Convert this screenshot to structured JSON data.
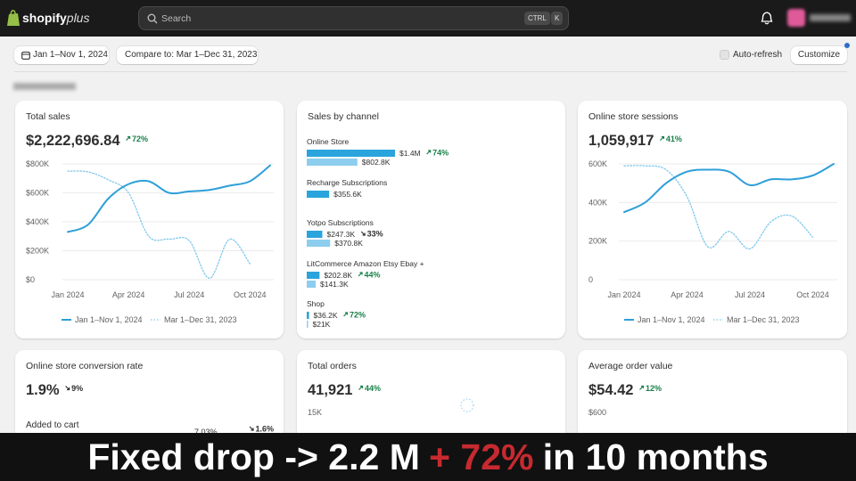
{
  "header": {
    "logo": "shopify",
    "logo_suffix": "plus",
    "search": "Search",
    "shortcut": [
      "CTRL",
      "K"
    ]
  },
  "toolbar": {
    "date_range": "Jan 1–Nov 1, 2024",
    "compare": "Compare to: Mar 1–Dec 31, 2023",
    "auto_refresh": "Auto-refresh",
    "customize": "Customize"
  },
  "total_sales": {
    "title": "Total sales",
    "value": "$2,222,696.84",
    "change": "72%",
    "direction": "up",
    "chart": {
      "type": "line",
      "x": [
        0,
        1,
        2,
        3,
        4,
        5,
        6,
        7,
        8,
        9,
        10
      ],
      "xlim": [
        0,
        10
      ],
      "xticks": [
        {
          "value": 0,
          "label": "Jan 2024"
        },
        {
          "value": 3,
          "label": "Apr 2024"
        },
        {
          "value": 6,
          "label": "Jul 2024"
        },
        {
          "value": 9,
          "label": "Oct 2024"
        }
      ],
      "ylim": [
        0,
        800000
      ],
      "yticks": [
        {
          "value": 0,
          "label": "$0"
        },
        {
          "value": 200000,
          "label": "$200K"
        },
        {
          "value": 400000,
          "label": "$400K"
        },
        {
          "value": 600000,
          "label": "$600K"
        },
        {
          "value": 800000,
          "label": "$800K"
        }
      ],
      "grid": true,
      "series": [
        {
          "name": "Jan 1–Nov 1, 2024",
          "color": "#2e9fd8",
          "line_style": "solid",
          "values": [
            330000,
            380000,
            560000,
            660000,
            680000,
            600000,
            610000,
            620000,
            650000,
            680000,
            790000
          ]
        },
        {
          "name": "Mar 1–Dec 31, 2023",
          "color": "#7fc8ec",
          "line_style": "dotted",
          "values": [
            750000,
            745000,
            690000,
            600000,
            300000,
            280000,
            270000,
            10000,
            280000,
            110000,
            null
          ]
        }
      ]
    }
  },
  "sales_by_channel": {
    "title": "Sales by channel",
    "max": 1400000,
    "channels": [
      {
        "name": "Online Store",
        "current": 1400000,
        "current_label": "$1.4M",
        "previous": 802800,
        "previous_label": "$802.8K",
        "change": "74%",
        "direction": "up"
      },
      {
        "name": "Recharge Subscriptions",
        "current": 355600,
        "current_label": "$355.6K"
      },
      {
        "name": "Yotpo Subscriptions",
        "current": 247300,
        "current_label": "$247.3K",
        "previous": 370800,
        "previous_label": "$370.8K",
        "change": "33%",
        "direction": "down"
      },
      {
        "name": "LitCommerce Amazon Etsy Ebay +",
        "current": 202800,
        "current_label": "$202.8K",
        "previous": 141300,
        "previous_label": "$141.3K",
        "change": "44%",
        "direction": "up"
      },
      {
        "name": "Shop",
        "current": 36200,
        "current_label": "$36.2K",
        "previous": 21000,
        "previous_label": "$21K",
        "change": "72%",
        "direction": "up"
      }
    ]
  },
  "sessions": {
    "title": "Online store sessions",
    "value": "1,059,917",
    "change": "41%",
    "direction": "up",
    "chart": {
      "type": "line",
      "x": [
        0,
        1,
        2,
        3,
        4,
        5,
        6,
        7,
        8,
        9,
        10
      ],
      "xlim": [
        0,
        10
      ],
      "xticks": [
        {
          "value": 0,
          "label": "Jan 2024"
        },
        {
          "value": 3,
          "label": "Apr 2024"
        },
        {
          "value": 6,
          "label": "Jul 2024"
        },
        {
          "value": 9,
          "label": "Oct 2024"
        }
      ],
      "ylim": [
        0,
        600000
      ],
      "yticks": [
        0,
        {
          "value": 200000,
          "label": "200K"
        },
        {
          "value": 400000,
          "label": "400K"
        },
        {
          "value": 600000,
          "label": "600K"
        }
      ],
      "grid": true,
      "series": [
        {
          "name": "Jan 1–Nov 1, 2024",
          "color": "#2e9fd8",
          "line_style": "solid",
          "values": [
            350000,
            400000,
            500000,
            560000,
            570000,
            560000,
            490000,
            520000,
            520000,
            540000,
            600000
          ]
        },
        {
          "name": "Mar 1–Dec 31, 2023",
          "color": "#7fc8ec",
          "line_style": "dotted",
          "values": [
            590000,
            590000,
            570000,
            430000,
            170000,
            250000,
            160000,
            300000,
            330000,
            220000,
            null
          ]
        }
      ]
    }
  },
  "conversion": {
    "title": "Online store conversion rate",
    "value": "1.9%",
    "change": "9%",
    "direction": "down",
    "row": {
      "label": "Added to cart",
      "value": "7.03%",
      "change": "1.6%",
      "direction": "down"
    }
  },
  "orders": {
    "title": "Total orders",
    "value": "41,921",
    "change": "44%",
    "direction": "up",
    "tick": "15K"
  },
  "aov": {
    "title": "Average order value",
    "value": "$54.42",
    "change": "12%",
    "direction": "up",
    "tick": "$600"
  },
  "banner": {
    "text_before": "Fixed drop -> 2.2 M",
    "highlight": "+ 72%",
    "text_after": "in 10 months"
  }
}
